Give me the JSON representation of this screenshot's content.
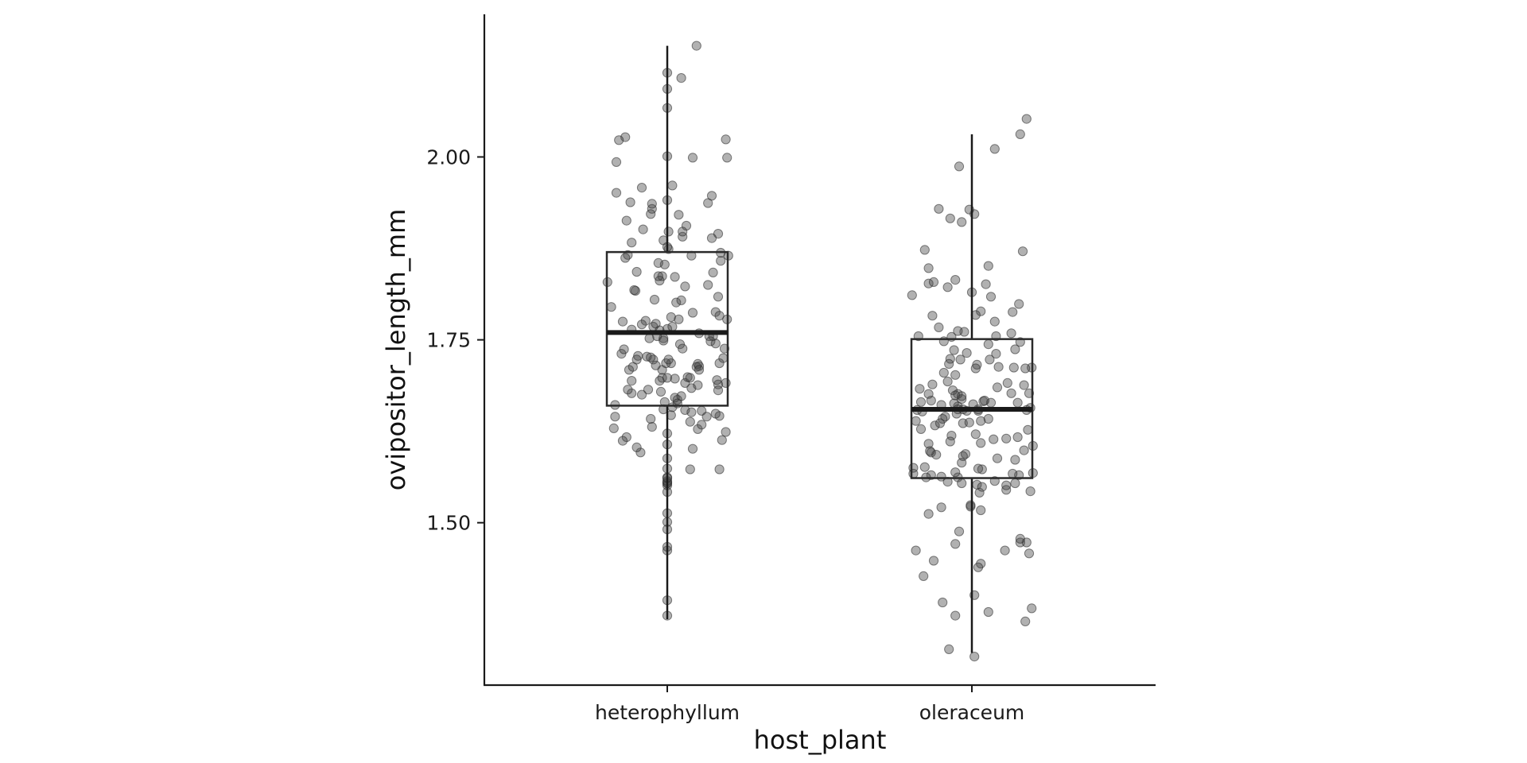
{
  "chart_data": {
    "type": "boxplot",
    "overlay": "jittered-points",
    "xlabel": "host_plant",
    "ylabel": "ovipositor_length_mm",
    "ylim": [
      1.278,
      2.195
    ],
    "yticks": [
      1.5,
      1.75,
      2.0
    ],
    "ytick_labels": [
      "1.50",
      "1.75",
      "2.00"
    ],
    "categories": [
      "heterophyllum",
      "oleraceum"
    ],
    "grid": false,
    "legend": "none",
    "point_color": "#5a5a5a",
    "box_color": "#2a2a2a",
    "boxes": [
      {
        "category": "heterophyllum",
        "whisker_low": 1.368,
        "q1": 1.66,
        "median": 1.76,
        "q3": 1.87,
        "whisker_high": 2.152
      },
      {
        "category": "oleraceum",
        "whisker_low": 1.322,
        "q1": 1.561,
        "median": 1.655,
        "q3": 1.751,
        "whisker_high": 2.031
      }
    ],
    "points": [
      {
        "category": "heterophyllum",
        "offset": [
          -0.35,
          0.27,
          -0.13,
          0.07,
          -0.12,
          -0.28,
          -0.15,
          0.41,
          0.2,
          0.14,
          0.12,
          0.14,
          0.18,
          0.4,
          0.03,
          0.46,
          -0.25,
          0.38,
          0.24,
          0.31,
          0.06,
          0.19,
          0.32,
          -0.04,
          -0.21,
          0.14,
          -0.41,
          0.44,
          -0.31,
          0.09,
          0.33,
          0.15,
          0.43,
          0.41,
          -0.47,
          0.24,
          -0.04,
          -0.33,
          -0.23,
          0.01,
          0.41,
          0.38,
          -0.17,
          0.19,
          -0.28,
          0.01,
          0.08,
          0.36,
          0.0,
          0.25,
          -0.04,
          -0.11,
          -0.06,
          -0.11,
          0.06,
          -0.3,
          0.39,
          0.34,
          0.27,
          0.24,
          -0.06,
          0.04,
          -0.36,
          0.38,
          -0.26,
          -0.16,
          -0.24,
          0.45,
          -0.03,
          0.36,
          0.11,
          0.18,
          -0.32,
          -0.02,
          -0.07,
          0.23,
          -0.41,
          -0.09,
          0.03,
          -0.1,
          -0.42,
          -0.07,
          0.48,
          0.46,
          0.2,
          0.25,
          -0.24,
          0.16,
          0.03,
          -0.14,
          0.18,
          -0.06,
          -0.03,
          0.19,
          -0.2,
          0.0,
          -0.08,
          0.04,
          -0.2,
          0.25,
          0.1,
          0.42,
          0.08,
          -0.12,
          -0.34,
          -0.44,
          -0.13,
          0.4,
          -0.09,
          0.12,
          -0.35,
          -0.01,
          0.11,
          0.01,
          -0.02,
          0.47,
          0.06,
          -0.28,
          -0.27,
          -0.05,
          0.4,
          -0.03,
          -0.24,
          -0.31,
          0.42,
          0.41,
          0.11,
          0.47,
          -0.2,
          -0.12,
          -0.32,
          0.2,
          -0.4,
          0.32,
          -0.03,
          -0.19,
          0.4,
          -0.4,
          0.09,
          0.35,
          -0.29,
          -0.13,
          -0.33,
          0.04,
          0.46,
          0.12,
          -0.38,
          -0.28,
          0.23,
          0.35
        ],
        "values": [
          1.775,
          1.653,
          1.642,
          1.801,
          1.929,
          1.677,
          1.682,
          1.718,
          1.601,
          1.654,
          1.891,
          1.823,
          1.573,
          1.689,
          1.781,
          1.624,
          1.817,
          1.788,
          1.628,
          1.645,
          1.836,
          1.684,
          1.825,
          1.698,
          1.596,
          1.691,
          1.645,
          1.725,
          1.866,
          1.778,
          1.755,
          1.906,
          1.613,
          1.646,
          1.829,
          1.688,
          1.837,
          1.862,
          1.728,
          1.874,
          1.573,
          1.649,
          1.776,
          1.865,
          1.764,
          1.898,
          1.668,
          1.755,
          1.765,
          1.714,
          1.709,
          1.723,
          1.694,
          1.768,
          1.671,
          1.709,
          1.695,
          1.748,
          1.634,
          1.717,
          1.831,
          1.768,
          1.731,
          1.745,
          1.818,
          1.727,
          1.603,
          1.738,
          1.752,
          1.842,
          1.673,
          1.638,
          1.617,
          1.853,
          1.837,
          1.713,
          1.661,
          1.715,
          1.718,
          1.805,
          1.629,
          1.855,
          1.865,
          1.691,
          1.787,
          1.709,
          1.723,
          1.699,
          1.647,
          1.752,
          1.698,
          1.763,
          1.655,
          1.651,
          1.675,
          1.698,
          1.755,
          1.658,
          1.771,
          1.759,
          1.744,
          1.858,
          1.663,
          1.631,
          1.737,
          1.795,
          1.726,
          1.809,
          1.772,
          1.738,
          1.612,
          1.718,
          1.804,
          1.723,
          1.665,
          1.778,
          1.697,
          1.694,
          1.713,
          1.679,
          1.681,
          1.749,
          1.843,
          1.682,
          1.869,
          1.783,
          2.108,
          1.999,
          1.958,
          1.936,
          1.913,
          1.999,
          1.993,
          1.937,
          1.886,
          1.901,
          1.895,
          1.951,
          1.921,
          1.947,
          1.938,
          1.922,
          2.027,
          1.961,
          2.024,
          1.898,
          2.023,
          1.883,
          2.152,
          1.889,
          2.001,
          1.941,
          1.877,
          2.115,
          2.067,
          2.093,
          1.551,
          1.501,
          1.554,
          1.555,
          1.607,
          1.588,
          1.622,
          1.562,
          1.542,
          1.513,
          1.557,
          1.561,
          1.462,
          1.394,
          1.467,
          1.491,
          1.373,
          1.574
        ]
      },
      {
        "category": "oleraceum",
        "offset": [
          0.15,
          -0.32,
          0.06,
          -0.14,
          0.48,
          -0.44,
          0.19,
          0.36,
          0.09,
          -0.05,
          -0.11,
          0.46,
          0.01,
          0.37,
          -0.07,
          -0.31,
          -0.21,
          0.04,
          -0.07,
          -0.16,
          -0.17,
          0.31,
          0.14,
          -0.04,
          0.05,
          0.17,
          0.08,
          0.27,
          -0.4,
          0.34,
          -0.04,
          -0.11,
          -0.28,
          -0.14,
          0.41,
          0.03,
          0.2,
          0.05,
          -0.36,
          0.43,
          -0.39,
          -0.07,
          0.13,
          -0.15,
          -0.11,
          0.05,
          -0.41,
          -0.13,
          -0.17,
          -0.29,
          -0.37,
          0.47,
          -0.08,
          -0.09,
          -0.23,
          0.21,
          0.41,
          -0.02,
          -0.13,
          -0.19,
          -0.43,
          0.2,
          -0.34,
          -0.22,
          -0.08,
          0.38,
          -0.32,
          0.07,
          -0.22,
          0.42,
          -0.16,
          0.28,
          -0.32,
          0.19,
          -0.34,
          -0.25,
          0.33,
          0.03,
          0.07,
          -0.24,
          0.13,
          -0.46,
          -0.08,
          -0.11,
          0.1,
          -0.12,
          -0.18,
          0.44,
          -0.13,
          0.36,
          -0.4,
          0.45,
          0.34,
          0.04,
          -0.08,
          -0.46,
          -0.33,
          0.48,
          -0.01,
          -0.01,
          0.46,
          0.43,
          0.08,
          -0.24,
          0.38,
          0.32,
          -0.3,
          0.34,
          0.07,
          -0.1,
          0.27,
          0.18,
          -0.44,
          0.07,
          -0.24,
          -0.34,
          0.45,
          -0.19,
          0.38,
          0.05,
          0.26,
          -0.13,
          0.27,
          -0.23,
          0.13,
          -0.18,
          0.02,
          0.42,
          -0.13,
          0.02,
          0.47,
          -0.38,
          -0.06,
          -0.26,
          0.18,
          0.37,
          -0.11,
          -0.42,
          -0.34,
          -0.47,
          -0.34,
          0.07,
          -0.31,
          0.0,
          -0.3,
          0.31,
          -0.13,
          0.32,
          0.15,
          0.03,
          -0.19,
          0.4,
          -0.37,
          0.11,
          0.13,
          -0.26,
          0.02,
          -0.17,
          -0.08,
          -0.02,
          -0.1,
          0.38,
          0.43,
          0.18,
          0.34,
          -0.33,
          -0.37,
          -0.1
        ],
        "values": [
          1.664,
          1.565,
          1.541,
          1.736,
          1.605,
          1.639,
          1.755,
          1.664,
          1.666,
          1.594,
          1.562,
          1.657,
          1.662,
          1.565,
          1.591,
          1.689,
          1.645,
          1.716,
          1.655,
          1.619,
          1.724,
          1.677,
          1.723,
          1.732,
          1.653,
          1.614,
          1.573,
          1.615,
          1.665,
          1.737,
          1.653,
          1.659,
          1.593,
          1.663,
          1.599,
          1.621,
          1.685,
          1.655,
          1.562,
          1.654,
          1.652,
          1.636,
          1.642,
          1.681,
          1.676,
          1.574,
          1.683,
          1.702,
          1.611,
          1.633,
          1.576,
          1.712,
          1.582,
          1.723,
          1.642,
          1.713,
          1.688,
          1.637,
          1.674,
          1.693,
          1.654,
          1.588,
          1.608,
          1.748,
          1.669,
          1.747,
          1.667,
          1.609,
          1.705,
          1.711,
          1.754,
          1.691,
          1.596,
          1.731,
          1.676,
          1.636,
          1.712,
          1.711,
          1.639,
          1.661,
          1.744,
          1.567,
          1.673,
          1.655,
          1.667,
          1.649,
          1.717,
          1.627,
          1.569,
          1.617,
          1.628,
          1.677,
          1.586,
          1.552,
          1.554,
          1.575,
          1.598,
          1.568,
          1.522,
          1.524,
          1.543,
          1.473,
          1.549,
          1.521,
          1.473,
          1.567,
          1.448,
          1.554,
          1.444,
          1.488,
          1.545,
          1.557,
          1.462,
          1.517,
          1.563,
          1.512,
          1.458,
          1.556,
          1.478,
          1.439,
          1.462,
          1.471,
          1.551,
          1.391,
          1.378,
          1.327,
          1.317,
          1.365,
          1.373,
          1.401,
          1.383,
          1.427,
          1.761,
          1.767,
          1.775,
          1.799,
          1.762,
          1.755,
          1.848,
          1.811,
          1.827,
          1.789,
          1.783,
          1.815,
          1.829,
          1.759,
          1.832,
          1.788,
          1.809,
          1.784,
          1.822,
          1.871,
          1.873,
          1.826,
          1.851,
          1.929,
          1.922,
          1.916,
          1.911,
          1.928,
          1.987,
          2.031,
          2.052,
          2.011
        ]
      }
    ]
  }
}
